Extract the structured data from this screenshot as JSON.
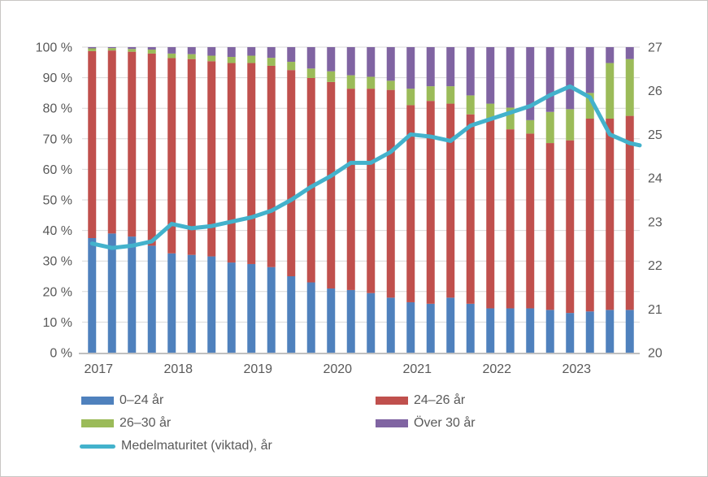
{
  "frame": {
    "background": "#ffffff",
    "border_color": "#c8c6c4"
  },
  "chart_data": {
    "type": "bar",
    "subtype": "stacked-100-percent-columns-with-line",
    "title": "",
    "visible_year_labels": [
      "2017",
      "2018",
      "2019",
      "2020",
      "2021",
      "2022",
      "2023"
    ],
    "bars_per_year": 4,
    "series": [
      {
        "name": "0–24 år",
        "color": "#4f81bd",
        "values": [
          37.5,
          39,
          38,
          35,
          32.5,
          32,
          31.5,
          29.5,
          29,
          28,
          25,
          23,
          21,
          20.5,
          19.5,
          18,
          16.5,
          16,
          18,
          16,
          14.5,
          14.5,
          14.5,
          14,
          13,
          13.5,
          14,
          14
        ]
      },
      {
        "name": "24–26 år",
        "color": "#c0504d",
        "values": [
          61.2,
          59.9,
          60.5,
          62.9,
          63.9,
          64.1,
          63.9,
          65.3,
          65.8,
          65.9,
          67.5,
          66.9,
          67.6,
          65.9,
          66.9,
          68,
          64.5,
          66.4,
          63.5,
          62,
          61.7,
          58.6,
          57.2,
          54.6,
          56.5,
          63.1,
          62.6,
          63.5
        ]
      },
      {
        "name": "26–30 år",
        "color": "#9bbb59",
        "values": [
          0.9,
          0.8,
          0.9,
          1.3,
          1.5,
          1.6,
          1.8,
          2,
          2.4,
          2.6,
          2.7,
          3.1,
          3.5,
          4.4,
          3.9,
          3,
          5.4,
          4.8,
          5.7,
          6.2,
          5.3,
          7.1,
          4.4,
          10.2,
          10.2,
          8.4,
          18.2,
          18.6
        ]
      },
      {
        "name": "Över 30 år",
        "color": "#8064a2",
        "values": [
          0.4,
          0.3,
          0.6,
          0.8,
          2.1,
          2.3,
          2.8,
          3.2,
          2.8,
          3.5,
          4.8,
          7,
          7.9,
          9.2,
          9.7,
          11,
          13.6,
          12.8,
          12.8,
          15.8,
          18.5,
          19.8,
          23.9,
          21.2,
          20.3,
          15,
          5.2,
          3.9
        ]
      }
    ],
    "line_series": {
      "name": "Medelmaturitet (viktad), år",
      "color": "#43b2cc",
      "axis": "right",
      "values": [
        22.5,
        22.4,
        22.45,
        22.55,
        22.95,
        22.85,
        22.9,
        23.0,
        23.1,
        23.25,
        23.5,
        23.8,
        24.05,
        24.35,
        24.35,
        24.6,
        25.0,
        24.95,
        24.85,
        25.2,
        25.35,
        25.5,
        25.65,
        25.9,
        26.1,
        25.85,
        25.0,
        24.8
      ],
      "edge_value": 24.75
    },
    "left_axis": {
      "min": 0,
      "max": 100,
      "tick_labels": [
        "0 %",
        "10 %",
        "20 %",
        "30 %",
        "40 %",
        "50 %",
        "60 %",
        "70 %",
        "80 %",
        "90 %",
        "100 %"
      ]
    },
    "right_axis": {
      "min": 20,
      "max": 27,
      "tick_labels": [
        "20",
        "21",
        "22",
        "23",
        "24",
        "25",
        "26",
        "27"
      ]
    },
    "grid": true,
    "legend_position": "bottom-left",
    "colors": {
      "grid": "#d9d9d9",
      "axis_line": "#bfbfbf",
      "text": "#595959",
      "background": "#ffffff"
    }
  }
}
